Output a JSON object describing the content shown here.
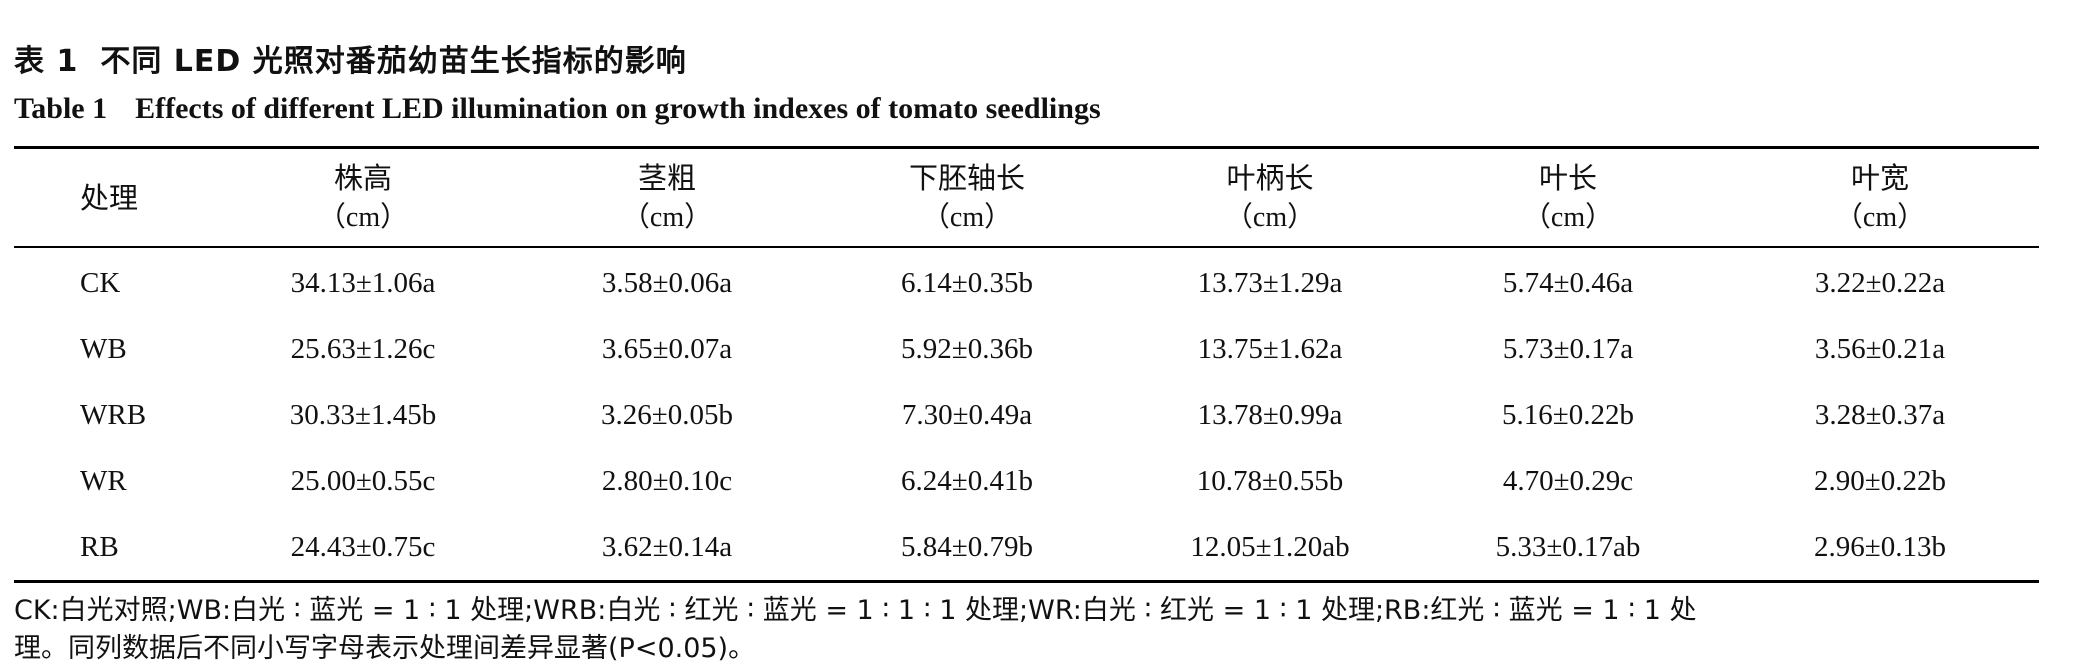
{
  "caption": {
    "cn_label": "表 1",
    "cn_title": "不同 LED 光照对番茄幼苗生长指标的影响",
    "en_label": "Table 1",
    "en_title": "Effects of different LED illumination on growth indexes of tomato seedlings"
  },
  "table": {
    "headers": [
      {
        "name": "处理",
        "unit": ""
      },
      {
        "name": "株高",
        "unit": "（cm）"
      },
      {
        "name": "茎粗",
        "unit": "（cm）"
      },
      {
        "name": "下胚轴长",
        "unit": "（cm）"
      },
      {
        "name": "叶柄长",
        "unit": "（cm）"
      },
      {
        "name": "叶长",
        "unit": "（cm）"
      },
      {
        "name": "叶宽",
        "unit": "（cm）"
      }
    ],
    "rows": [
      [
        "CK",
        "34.13±1.06a",
        "3.58±0.06a",
        "6.14±0.35b",
        "13.73±1.29a",
        "5.74±0.46a",
        "3.22±0.22a"
      ],
      [
        "WB",
        "25.63±1.26c",
        "3.65±0.07a",
        "5.92±0.36b",
        "13.75±1.62a",
        "5.73±0.17a",
        "3.56±0.21a"
      ],
      [
        "WRB",
        "30.33±1.45b",
        "3.26±0.05b",
        "7.30±0.49a",
        "13.78±0.99a",
        "5.16±0.22b",
        "3.28±0.37a"
      ],
      [
        "WR",
        "25.00±0.55c",
        "2.80±0.10c",
        "6.24±0.41b",
        "10.78±0.55b",
        "4.70±0.29c",
        "2.90±0.22b"
      ],
      [
        "RB",
        "24.43±0.75c",
        "3.62±0.14a",
        "5.84±0.79b",
        "12.05±1.20ab",
        "5.33±0.17ab",
        "2.96±0.13b"
      ]
    ]
  },
  "footnote": {
    "line1": "CK:白光对照;WB:白光 ∶ 蓝光 = 1 ∶ 1 处理;WRB:白光 ∶ 红光 ∶ 蓝光 = 1 ∶ 1 ∶ 1 处理;WR:白光 ∶ 红光 = 1 ∶ 1 处理;RB:红光 ∶ 蓝光 = 1 ∶ 1 处",
    "line2": "理。同列数据后不同小写字母表示处理间差异显著(P<0.05)。"
  }
}
